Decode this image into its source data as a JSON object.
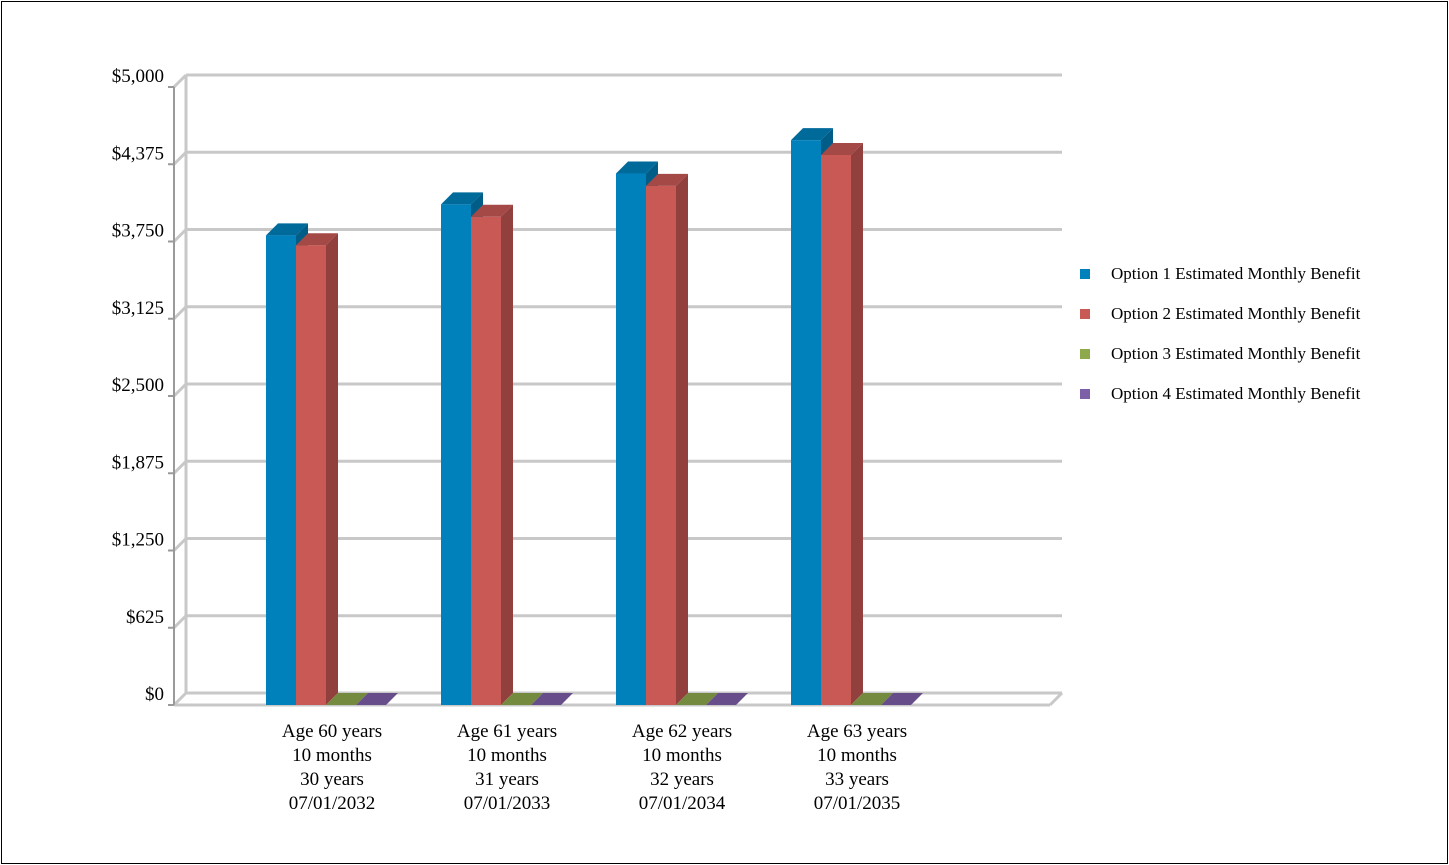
{
  "chart_data": {
    "type": "bar",
    "categories": [
      [
        "Age 60 years",
        "10 months",
        "30 years",
        "07/01/2032"
      ],
      [
        "Age 61 years",
        "10 months",
        "31 years",
        "07/01/2033"
      ],
      [
        "Age 62 years",
        "10 months",
        "32 years",
        "07/01/2034"
      ],
      [
        "Age 63 years",
        "10 months",
        "33 years",
        "07/01/2035"
      ]
    ],
    "series": [
      {
        "name": "Option 1 Estimated Monthly Benefit",
        "color": "#0081BC",
        "values": [
          3800,
          4050,
          4300,
          4570
        ]
      },
      {
        "name": "Option 2 Estimated Monthly Benefit",
        "color": "#C95955",
        "values": [
          3720,
          3950,
          4200,
          4450
        ]
      },
      {
        "name": "Option 3 Estimated Monthly Benefit",
        "color": "#8EA84C",
        "values": [
          0,
          0,
          0,
          0
        ]
      },
      {
        "name": "Option 4 Estimated Monthly Benefit",
        "color": "#7D5FA8",
        "values": [
          0,
          0,
          0,
          0
        ]
      }
    ],
    "ylim": [
      0,
      5000
    ],
    "yticks": [
      "$0",
      "$625",
      "$1,250",
      "$1,875",
      "$2,500",
      "$3,125",
      "$3,750",
      "$4,375",
      "$5,000"
    ],
    "grid": true,
    "legend_position": "right",
    "title": "",
    "xlabel": "",
    "ylabel": ""
  }
}
